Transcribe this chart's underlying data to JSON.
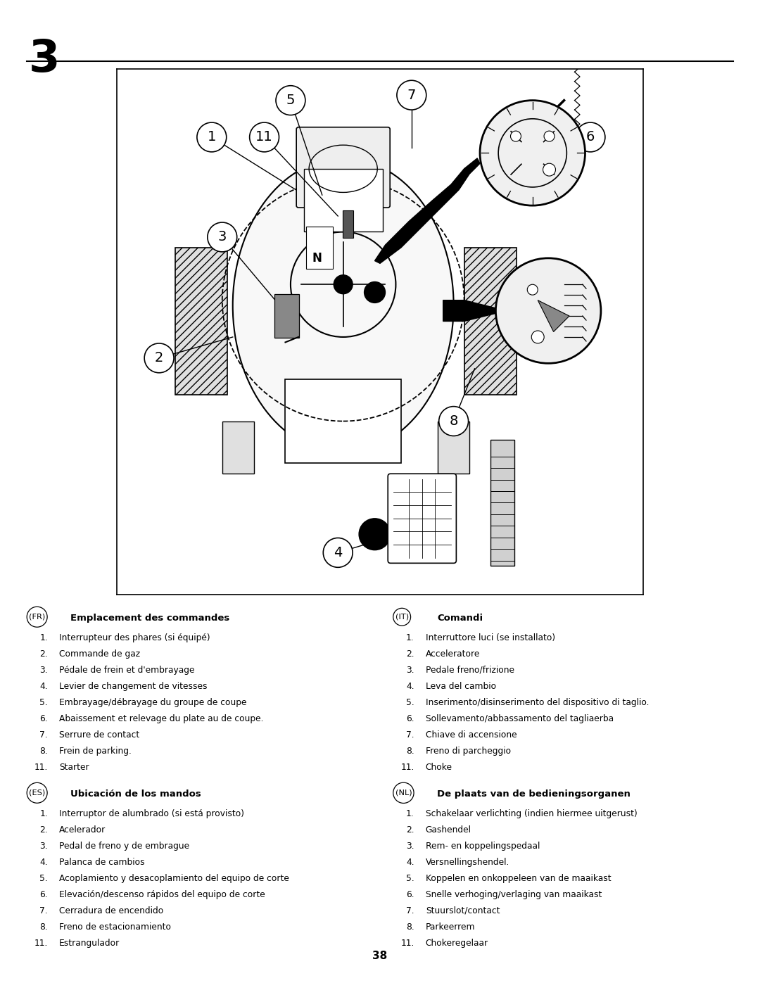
{
  "page_number": "3",
  "bottom_page_number": "38",
  "bg_color": "#ffffff",
  "text_color": "#000000",
  "section_fr_badge": "FR",
  "section_fr_title": "Emplacement des commandes",
  "section_fr_nums": [
    "1.",
    "2.",
    "3.",
    "4.",
    "5.",
    "6.",
    "7.",
    "8.",
    "11."
  ],
  "section_fr_items": [
    "Interrupteur des phares (si équipé)",
    "Commande de gaz",
    "Pédale de frein et d'embrayage",
    "Levier de changement de vitesses",
    "Embrayage/débrayage du groupe de coupe",
    "Abaissement et relevage du plate au de coupe.",
    "Serrure de contact",
    "Frein de parking.",
    "Starter"
  ],
  "section_es_badge": "ES",
  "section_es_title": "Ubicación de los mandos",
  "section_es_nums": [
    "1.",
    "2.",
    "3.",
    "4.",
    "5.",
    "6.",
    "7.",
    "8.",
    "11."
  ],
  "section_es_items": [
    "Interruptor de alumbrado (si está provisto)",
    "Acelerador",
    "Pedal de freno y de embrague",
    "Palanca de cambios",
    "Acoplamiento y desacoplamiento del equipo de corte",
    "Elevación/descenso rápidos del equipo de corte",
    "Cerradura de encendido",
    "Freno de estacionamiento",
    "Estrangulador"
  ],
  "section_it_badge": "IT",
  "section_it_title": "Comandi",
  "section_it_nums": [
    "1.",
    "2.",
    "3.",
    "4.",
    "5.",
    "6.",
    "7.",
    "8.",
    "11."
  ],
  "section_it_items": [
    "Interruttore luci (se installato)",
    "Acceleratore",
    "Pedale freno/frizione",
    "Leva del cambio",
    "Inserimento/disinserimento del dispositivo di taglio.",
    "Sollevamento/abbassamento del tagliaerba",
    "Chiave di accensione",
    "Freno di parcheggio",
    "Choke"
  ],
  "section_nl_badge": "NL",
  "section_nl_title": "De plaats van de bedieningsorganen",
  "section_nl_nums": [
    "1.",
    "2.",
    "3.",
    "4.",
    "5.",
    "6.",
    "7.",
    "8.",
    "11."
  ],
  "section_nl_items": [
    "Schakelaar verlichting (indien hiermee uitgerust)",
    "Gashendel",
    "Rem- en koppelingspedaal",
    "Versnellingshendel.",
    "Koppelen en onkoppeleen van de maaikast",
    "Snelle verhoging/verlaging van maaikast",
    "Stuurslot/contact",
    "Parkeerrem",
    "Chokeregelaar"
  ]
}
